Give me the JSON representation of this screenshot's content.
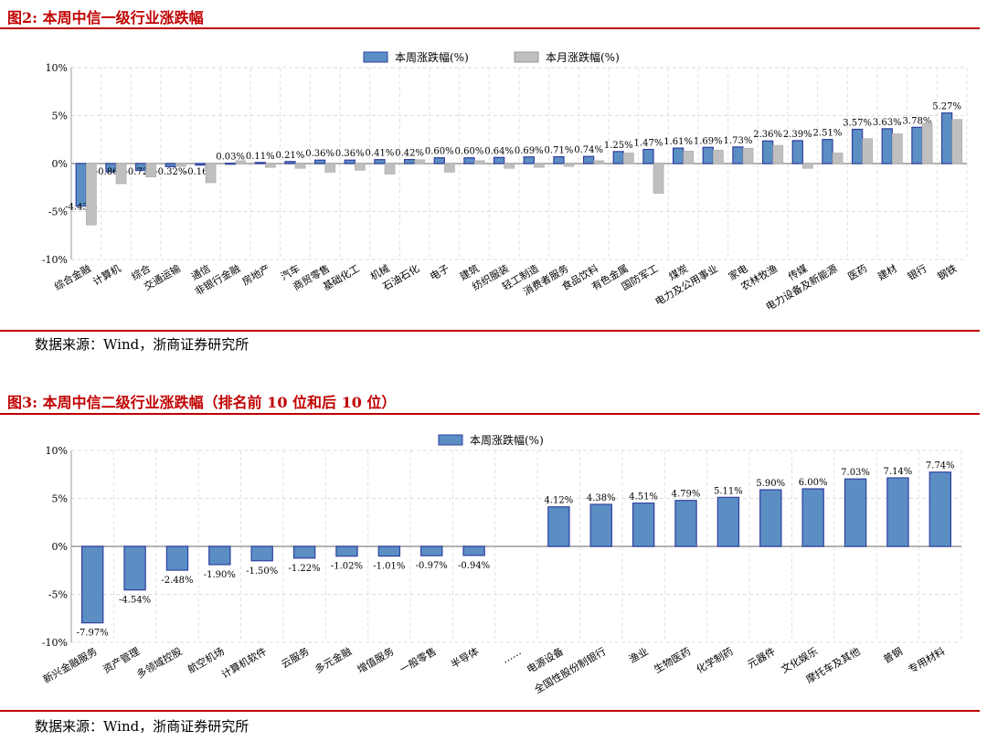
{
  "figures": [
    {
      "title": "图2:   本周中信一级行业涨跌幅",
      "source": "数据来源：Wind，浙商证券研究所"
    },
    {
      "title": "图3:   本周中信二级行业涨跌幅（排名前 10 位和后 10 位）",
      "source": "数据来源：Wind，浙商证券研究所"
    }
  ],
  "chart_data": [
    {
      "type": "bar",
      "title": "",
      "ylim": [
        -10,
        10
      ],
      "yticks": [
        "-10%",
        "-5%",
        "0%",
        "5%",
        "10%"
      ],
      "grid": true,
      "legend_position": "top-center",
      "categories": [
        "综合金融",
        "计算机",
        "综合",
        "交通运输",
        "通信",
        "非银行金融",
        "房地产",
        "汽车",
        "商贸零售",
        "基础化工",
        "机械",
        "石油石化",
        "电子",
        "建筑",
        "纺织服装",
        "轻工制造",
        "消费者服务",
        "食品饮料",
        "有色金属",
        "国防军工",
        "煤炭",
        "电力及公用事业",
        "家电",
        "农林牧渔",
        "传媒",
        "电力设备及新能源",
        "医药",
        "建材",
        "银行",
        "钢铁"
      ],
      "series": [
        {
          "name": "本周涨跌幅(%)",
          "color": "#5b8fc4",
          "values": [
            -4.43,
            -0.86,
            -0.72,
            -0.32,
            -0.16,
            0.03,
            0.11,
            0.21,
            0.36,
            0.36,
            0.41,
            0.42,
            0.6,
            0.6,
            0.64,
            0.69,
            0.71,
            0.74,
            1.25,
            1.47,
            1.61,
            1.69,
            1.73,
            2.36,
            2.39,
            2.51,
            3.57,
            3.63,
            3.78,
            5.27
          ],
          "labels": [
            "-4.43%",
            "-0.86%",
            "-0.72%",
            "-0.32%",
            "-0.16%",
            "0.03%",
            "0.11%",
            "0.21%",
            "0.36%",
            "0.36%",
            "0.41%",
            "0.42%",
            "0.60%",
            "0.60%",
            "0.64%",
            "0.69%",
            "0.71%",
            "0.74%",
            "1.25%",
            "1.47%",
            "1.61%",
            "1.69%",
            "1.73%",
            "2.36%",
            "2.39%",
            "2.51%",
            "3.57%",
            "3.63%",
            "3.78%",
            "5.27%"
          ]
        },
        {
          "name": "本月涨跌幅(%)",
          "color": "#bfbfbf",
          "values": [
            -6.4,
            -2.1,
            -1.4,
            -0.3,
            -2.0,
            0.3,
            -0.4,
            -0.5,
            -0.9,
            -0.7,
            -1.1,
            0.4,
            -0.9,
            0.3,
            -0.5,
            -0.4,
            -0.3,
            0.3,
            1.1,
            -3.1,
            1.3,
            1.4,
            1.6,
            1.9,
            -0.5,
            1.1,
            2.6,
            3.1,
            4.2,
            4.6
          ]
        }
      ]
    },
    {
      "type": "bar",
      "title": "",
      "ylim": [
        -10,
        10
      ],
      "yticks": [
        "-10%",
        "-5%",
        "0%",
        "5%",
        "10%"
      ],
      "grid": true,
      "legend_position": "top-center",
      "categories": [
        "新兴金融服务",
        "资产管理",
        "多领域控股",
        "航空机场",
        "计算机软件",
        "云服务",
        "多元金融",
        "增值服务",
        "一般零售",
        "半导体",
        "……",
        "电源设备",
        "全国性股份制银行",
        "渔业",
        "生物医药",
        "化学制药",
        "元器件",
        "文化娱乐",
        "摩托车及其他",
        "普钢",
        "专用材料"
      ],
      "series": [
        {
          "name": "本周涨跌幅(%)",
          "color": "#5b8fc4",
          "values": [
            -7.97,
            -4.54,
            -2.48,
            -1.9,
            -1.5,
            -1.22,
            -1.02,
            -1.01,
            -0.97,
            -0.94,
            null,
            4.12,
            4.38,
            4.51,
            4.79,
            5.11,
            5.9,
            6.0,
            7.03,
            7.14,
            7.74
          ],
          "labels": [
            "-7.97%",
            "-4.54%",
            "-2.48%",
            "-1.90%",
            "-1.50%",
            "-1.22%",
            "-1.02%",
            "-1.01%",
            "-0.97%",
            "-0.94%",
            "",
            "4.12%",
            "4.38%",
            "4.51%",
            "4.79%",
            "5.11%",
            "5.90%",
            "6.00%",
            "7.03%",
            "7.14%",
            "7.74%"
          ]
        }
      ]
    }
  ]
}
